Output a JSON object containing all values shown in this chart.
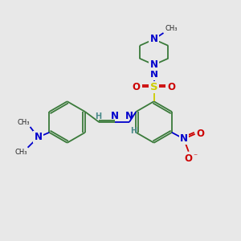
{
  "bg_color": "#e8e8e8",
  "bond_color": "#3a7a3a",
  "bond_width": 1.3,
  "N_color": "#0000cc",
  "O_color": "#cc0000",
  "S_color": "#cccc00",
  "H_color": "#4a8a8a",
  "dark_color": "#222222",
  "figsize": [
    3.0,
    3.0
  ],
  "dpi": 100,
  "xlim": [
    0,
    300
  ],
  "ylim": [
    0,
    300
  ]
}
